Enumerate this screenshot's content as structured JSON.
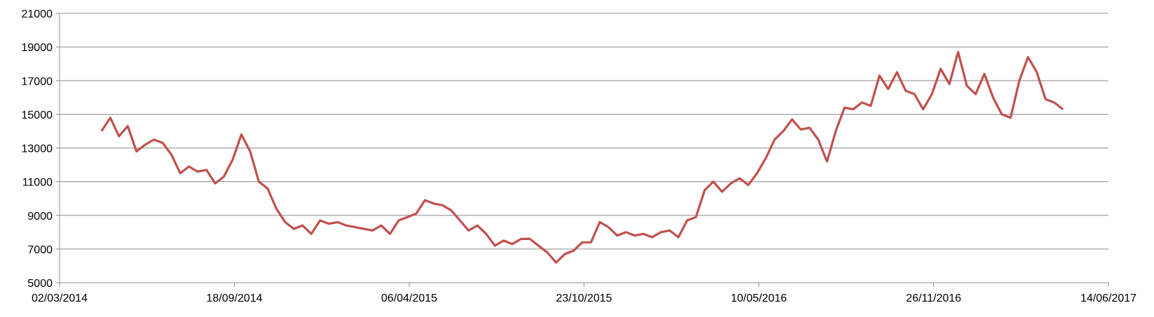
{
  "chart_data": {
    "type": "line",
    "x": [
      "19/04/2014",
      "29/04/2014",
      "09/05/2014",
      "19/05/2014",
      "29/05/2014",
      "08/06/2014",
      "18/06/2014",
      "28/06/2014",
      "08/07/2014",
      "18/07/2014",
      "28/07/2014",
      "07/08/2014",
      "17/08/2014",
      "27/08/2014",
      "06/09/2014",
      "16/09/2014",
      "26/09/2014",
      "06/10/2014",
      "16/10/2014",
      "26/10/2014",
      "05/11/2014",
      "15/11/2014",
      "25/11/2014",
      "05/12/2014",
      "15/12/2014",
      "25/12/2014",
      "04/01/2015",
      "14/01/2015",
      "24/01/2015",
      "03/02/2015",
      "13/02/2015",
      "23/02/2015",
      "05/03/2015",
      "15/03/2015",
      "25/03/2015",
      "04/04/2015",
      "14/04/2015",
      "24/04/2015",
      "04/05/2015",
      "14/05/2015",
      "24/05/2015",
      "03/06/2015",
      "13/06/2015",
      "23/06/2015",
      "03/07/2015",
      "13/07/2015",
      "23/07/2015",
      "02/08/2015",
      "12/08/2015",
      "22/08/2015",
      "01/09/2015",
      "11/09/2015",
      "21/09/2015",
      "01/10/2015",
      "11/10/2015",
      "21/10/2015",
      "31/10/2015",
      "10/11/2015",
      "20/11/2015",
      "30/11/2015",
      "10/12/2015",
      "20/12/2015",
      "30/12/2015",
      "09/01/2016",
      "19/01/2016",
      "29/01/2016",
      "08/02/2016",
      "18/02/2016",
      "28/02/2016",
      "09/03/2016",
      "19/03/2016",
      "29/03/2016",
      "08/04/2016",
      "18/04/2016",
      "28/04/2016",
      "08/05/2016",
      "18/05/2016",
      "28/05/2016",
      "07/06/2016",
      "17/06/2016",
      "27/06/2016",
      "07/07/2016",
      "17/07/2016",
      "27/07/2016",
      "06/08/2016",
      "16/08/2016",
      "26/08/2016",
      "05/09/2016",
      "15/09/2016",
      "25/09/2016",
      "05/10/2016",
      "15/10/2016",
      "25/10/2016",
      "04/11/2016",
      "14/11/2016",
      "24/11/2016",
      "04/12/2016",
      "14/12/2016",
      "24/12/2016",
      "03/01/2017",
      "13/01/2017",
      "23/01/2017",
      "02/02/2017",
      "12/02/2017",
      "22/02/2017",
      "04/03/2017",
      "14/03/2017",
      "24/03/2017",
      "03/04/2017",
      "13/04/2017",
      "23/04/2017"
    ],
    "series": [
      {
        "color": "#c0504d",
        "values": [
          14000,
          14800,
          13700,
          14300,
          12800,
          13200,
          13500,
          13300,
          12600,
          11500,
          11900,
          11600,
          11700,
          10900,
          11300,
          12300,
          13800,
          12800,
          11000,
          10600,
          9400,
          8600,
          8200,
          8400,
          7900,
          8700,
          8500,
          8600,
          8400,
          8300,
          8200,
          8100,
          8400,
          7900,
          8700,
          8900,
          9100,
          9900,
          9700,
          9600,
          9300,
          8700,
          8100,
          8400,
          7900,
          7200,
          7500,
          7300,
          7600,
          7600,
          7200,
          6800,
          6200,
          6700,
          6900,
          7400,
          7400,
          8600,
          8300,
          7800,
          8000,
          7800,
          7900,
          7700,
          8000,
          8100,
          7700,
          8700,
          8900,
          10500,
          11000,
          10400,
          10900,
          11200,
          10800,
          11500,
          12400,
          13500,
          14000,
          14700,
          14100,
          14200,
          13500,
          12200,
          14000,
          15400,
          15300,
          15700,
          15500,
          17300,
          16500,
          17500,
          16400,
          16200,
          15300,
          16200,
          17700,
          16800,
          18700,
          16700,
          16200,
          17400,
          16000,
          15000,
          14800,
          17000,
          18400,
          17500,
          15900,
          15700,
          15300
        ]
      }
    ],
    "xlim": [
      "02/03/2014",
      "14/06/2017"
    ],
    "xticks": [
      "02/03/2014",
      "18/09/2014",
      "06/04/2015",
      "23/10/2015",
      "10/05/2016",
      "26/11/2016",
      "14/06/2017"
    ],
    "ylim": [
      5000,
      21000
    ],
    "yticks": [
      5000,
      7000,
      9000,
      11000,
      13000,
      15000,
      17000,
      19000,
      21000
    ],
    "grid": true
  }
}
